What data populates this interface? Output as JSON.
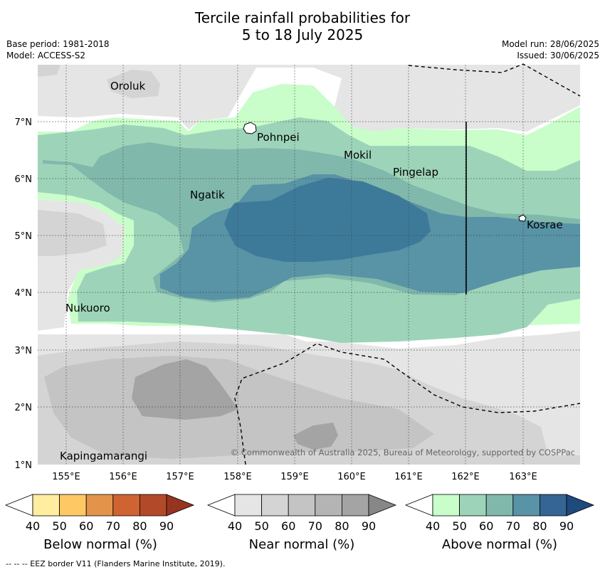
{
  "title": {
    "line1": "Tercile rainfall probabilities for",
    "line2": "5 to 18 July 2025"
  },
  "meta": {
    "base_period": "Base period: 1981-2018",
    "model": "Model: ACCESS-S2",
    "model_run": "Model run: 28/06/2025",
    "issued": "Issued: 30/06/2025"
  },
  "map": {
    "lon_labels": [
      "155°E",
      "156°E",
      "157°E",
      "158°E",
      "159°E",
      "160°E",
      "161°E",
      "162°E",
      "163°E"
    ],
    "lat_labels": [
      "7°N",
      "6°N",
      "5°N",
      "4°N",
      "3°N",
      "2°N",
      "1°N"
    ],
    "places": {
      "oroluk": "Oroluk",
      "pohnpei": "Pohnpei",
      "mokil": "Mokil",
      "pingelap": "Pingelap",
      "ngatik": "Ngatik",
      "kosrae": "Kosrae",
      "nukuoro": "Nukuoro",
      "kapingamarangi": "Kapingamarangi"
    },
    "copyright": "© Commonwealth of Australia 2025, Bureau of Meteorology, supported by COSPPac"
  },
  "colorbars": {
    "ticks": [
      "40",
      "50",
      "60",
      "70",
      "80",
      "90"
    ],
    "below": {
      "label": "Below normal (%)",
      "colors": [
        "#ffffff",
        "#ffeda0",
        "#fec965",
        "#e3944a",
        "#cf6331",
        "#b24a29",
        "#973420"
      ]
    },
    "near": {
      "label": "Near normal (%)",
      "colors": [
        "#ffffff",
        "#e5e5e5",
        "#d4d4d4",
        "#c4c4c4",
        "#b4b4b4",
        "#a4a4a4",
        "#878787"
      ]
    },
    "above": {
      "label": "Above normal (%)",
      "colors": [
        "#ffffff",
        "#c9fdca",
        "#9dd4b9",
        "#81b8ac",
        "#5893a6",
        "#346595",
        "#1e4a7d"
      ]
    }
  },
  "footer": {
    "eez": "--  --  -- EEZ border V11 (Flanders Marine Institute, 2019)."
  }
}
